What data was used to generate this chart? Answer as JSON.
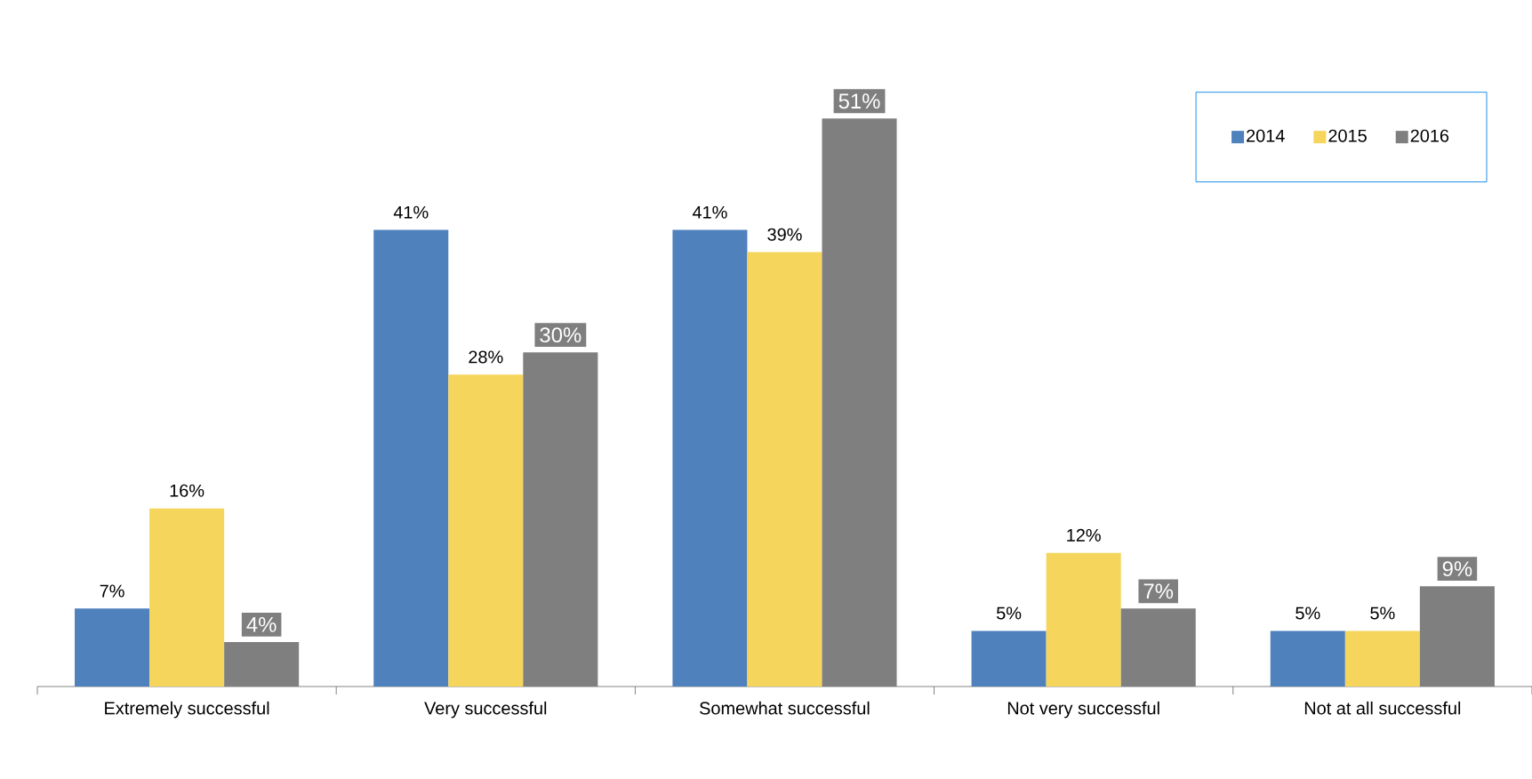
{
  "chart_data": {
    "type": "bar",
    "categories": [
      "Extremely successful",
      "Very successful",
      "Somewhat successful",
      "Not very successful",
      "Not at all successful"
    ],
    "series": [
      {
        "name": "2014",
        "color": "#4f81bd",
        "values": [
          7,
          41,
          41,
          5,
          5
        ],
        "value_labels": [
          "7%",
          "41%",
          "41%",
          "5%",
          "5%"
        ]
      },
      {
        "name": "2015",
        "color": "#f5d55b",
        "values": [
          16,
          28,
          39,
          12,
          5
        ],
        "value_labels": [
          "16%",
          "28%",
          "39%",
          "12%",
          "5%"
        ]
      },
      {
        "name": "2016",
        "color": "#7f7f7f",
        "values": [
          4,
          30,
          51,
          7,
          9
        ],
        "value_labels": [
          "4%",
          "30%",
          "51%",
          "7%",
          "9%"
        ]
      }
    ],
    "legend": "top right"
  }
}
